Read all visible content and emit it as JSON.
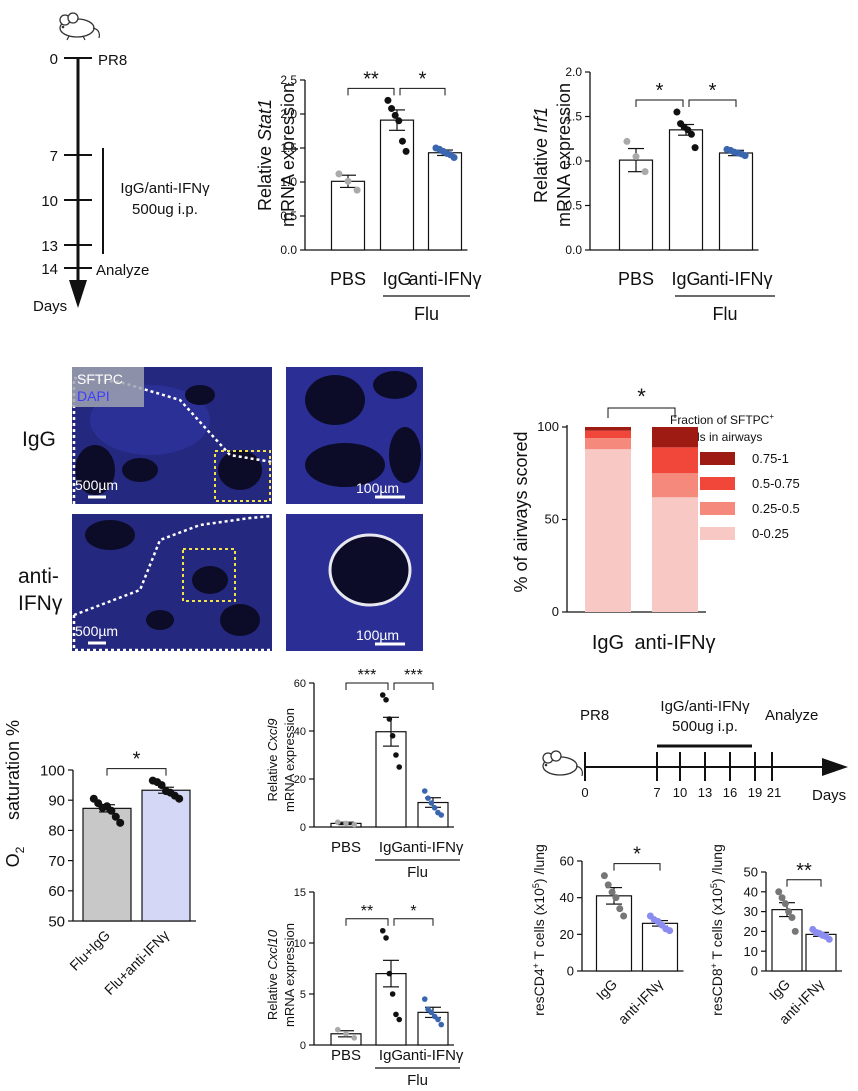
{
  "timeline_a": {
    "day_labels": [
      "0",
      "7",
      "10",
      "13",
      "14"
    ],
    "events": {
      "pr8": "PR8",
      "treatment_line1": "IgG/anti-IFNγ",
      "treatment_line2": "500ug i.p.",
      "analyze": "Analyze"
    },
    "axis_label": "Days"
  },
  "micrographs": {
    "row_labels": [
      "IgG",
      "anti-",
      "IFNγ"
    ],
    "stain_labels": [
      "SFTPC",
      "DAPI"
    ],
    "scalebars": [
      "500µm",
      "100µm",
      "500µm",
      "100µm"
    ],
    "colors": {
      "dapi": "#2b2f9e",
      "sftpc": "#e8e8f0",
      "roi_box": "#f2e34a"
    }
  },
  "timeline_b": {
    "pr8": "PR8",
    "treatment_line1": "IgG/anti-IFNγ",
    "treatment_line2": "500ug i.p.",
    "analyze": "Analyze",
    "ticks": [
      "0",
      "7",
      "10",
      "13",
      "16",
      "19",
      "21"
    ],
    "axis_label": "Days"
  },
  "chart_data": [
    {
      "id": "stat1",
      "type": "bar",
      "ylabel_line1": "Relative ",
      "ylabel_gene": "Stat1",
      "ylabel_line2": "mRNA expression",
      "categories": [
        "PBS",
        "IgG",
        "anti-IFNγ"
      ],
      "group_label": "Flu",
      "values": [
        1.01,
        1.91,
        1.43
      ],
      "sem": [
        0.09,
        0.15,
        0.04
      ],
      "points": [
        [
          1.12,
          1.01,
          0.88
        ],
        [
          2.2,
          2.08,
          1.98,
          1.9,
          1.6,
          1.45
        ],
        [
          1.5,
          1.48,
          1.45,
          1.42,
          1.4,
          1.36
        ]
      ],
      "ylim": [
        0,
        2.5
      ],
      "yticks": [
        "0.0",
        "0.5",
        "1.0",
        "1.5",
        "2.0",
        "2.5"
      ],
      "significance": [
        {
          "pair": [
            0,
            1
          ],
          "label": "**"
        },
        {
          "pair": [
            1,
            2
          ],
          "label": "*"
        }
      ],
      "point_colors": [
        "#aaaaaa",
        "#111111",
        "#3a66b0"
      ]
    },
    {
      "id": "irf1",
      "type": "bar",
      "ylabel_line1": "Relative ",
      "ylabel_gene": "Irf1",
      "ylabel_line2": "mRNA expression",
      "categories": [
        "PBS",
        "IgG",
        "anti-IFNγ"
      ],
      "group_label": "Flu",
      "values": [
        1.01,
        1.35,
        1.09
      ],
      "sem": [
        0.13,
        0.06,
        0.03
      ],
      "points": [
        [
          1.22,
          1.05,
          0.88
        ],
        [
          1.55,
          1.42,
          1.38,
          1.35,
          1.3,
          1.15
        ],
        [
          1.13,
          1.12,
          1.1,
          1.09,
          1.08,
          1.06
        ]
      ],
      "ylim": [
        0,
        2.0
      ],
      "yticks": [
        "0.0",
        "0.5",
        "1.0",
        "1.5",
        "2.0"
      ],
      "significance": [
        {
          "pair": [
            0,
            1
          ],
          "label": "*"
        },
        {
          "pair": [
            1,
            2
          ],
          "label": "*"
        }
      ],
      "point_colors": [
        "#aaaaaa",
        "#111111",
        "#3a66b0"
      ]
    },
    {
      "id": "airways",
      "type": "stacked_bar",
      "ylabel": "% of airways scored",
      "categories": [
        "IgG",
        "anti-IFNγ"
      ],
      "ylim": [
        0,
        100
      ],
      "yticks": [
        "0",
        "50",
        "100"
      ],
      "legend_title_line1": "Fraction of SFTPC",
      "legend_title_sup": "+",
      "legend_title_line2": "cells in airways",
      "series": [
        {
          "name": "0-0.25",
          "values": [
            88,
            62
          ],
          "color": "#f8c9c4"
        },
        {
          "name": "0.25-0.5",
          "values": [
            6,
            13
          ],
          "color": "#f58a7c"
        },
        {
          "name": "0.5-0.75",
          "values": [
            4,
            14
          ],
          "color": "#f0473a"
        },
        {
          "name": "0.75-1",
          "values": [
            2,
            11
          ],
          "color": "#9e1b13"
        }
      ],
      "significance": [
        {
          "pair": [
            0,
            1
          ],
          "label": "*"
        }
      ]
    },
    {
      "id": "o2",
      "type": "bar",
      "ylabel_line1": "O",
      "ylabel_sub": "2",
      "ylabel_line2": "saturation %",
      "categories": [
        "Flu+IgG",
        "Flu+anti-IFNγ"
      ],
      "values": [
        87.3,
        93.3
      ],
      "sem": [
        1.2,
        1.0
      ],
      "points": [
        [
          90.5,
          89.0,
          87.5,
          88.0,
          86.5,
          84.5,
          82.5
        ],
        [
          96.5,
          96.0,
          95.0,
          93.0,
          92.5,
          91.5,
          90.5
        ]
      ],
      "ylim": [
        50,
        100
      ],
      "yticks": [
        "50",
        "60",
        "70",
        "80",
        "90",
        "100"
      ],
      "bar_colors": [
        "#c8c8c8",
        "#d4d7f6"
      ],
      "significance": [
        {
          "pair": [
            0,
            1
          ],
          "label": "*"
        }
      ],
      "point_colors": [
        "#111111",
        "#111111"
      ]
    },
    {
      "id": "cxcl9",
      "type": "bar",
      "ylabel_line1": "Relative ",
      "ylabel_gene": "Cxcl9",
      "ylabel_line2": "mRNA expression",
      "categories": [
        "PBS",
        "IgG",
        "anti-IFNγ"
      ],
      "group_label": "Flu",
      "values": [
        1.5,
        39.7,
        10.2
      ],
      "sem": [
        0.5,
        6.0,
        2.0
      ],
      "points": [
        [
          2.0,
          1.5,
          1.0
        ],
        [
          55.0,
          53.0,
          45.0,
          38.0,
          30.0,
          25.0
        ],
        [
          15.0,
          12.0,
          10.0,
          8.0,
          6.0,
          5.0
        ]
      ],
      "ylim": [
        0,
        60
      ],
      "yticks": [
        "0",
        "20",
        "40",
        "60"
      ],
      "significance": [
        {
          "pair": [
            0,
            1
          ],
          "label": "***"
        },
        {
          "pair": [
            1,
            2
          ],
          "label": "***"
        }
      ],
      "point_colors": [
        "#aaaaaa",
        "#111111",
        "#3a66b0"
      ]
    },
    {
      "id": "cxcl10",
      "type": "bar",
      "ylabel_line1": "Relative ",
      "ylabel_gene": "Cxcl10",
      "ylabel_line2": "mRNA expression",
      "categories": [
        "PBS",
        "IgG",
        "anti-IFNγ"
      ],
      "group_label": "Flu",
      "values": [
        1.1,
        7.0,
        3.2
      ],
      "sem": [
        0.3,
        1.3,
        0.5
      ],
      "points": [
        [
          1.5,
          1.1,
          0.7
        ],
        [
          11.2,
          10.5,
          7.0,
          5.0,
          3.0,
          2.5
        ],
        [
          4.5,
          3.5,
          3.2,
          2.8,
          2.5,
          2.0
        ]
      ],
      "ylim": [
        0,
        15
      ],
      "yticks": [
        "0",
        "5",
        "10",
        "15"
      ],
      "significance": [
        {
          "pair": [
            0,
            1
          ],
          "label": "**"
        },
        {
          "pair": [
            1,
            2
          ],
          "label": "*"
        }
      ],
      "point_colors": [
        "#aaaaaa",
        "#111111",
        "#3a66b0"
      ]
    },
    {
      "id": "cd4",
      "type": "bar",
      "ylabel_line1": "resCD4",
      "ylabel_sup": "+",
      "ylabel_line2": " T cells (x10",
      "ylabel_sup2": "5",
      "ylabel_line3": ") /lung",
      "categories": [
        "IgG",
        "anti-IFNγ"
      ],
      "values": [
        41.0,
        26.0
      ],
      "sem": [
        4.5,
        1.5
      ],
      "points": [
        [
          52.0,
          47.0,
          43.0,
          40.0,
          34.0,
          30.0
        ],
        [
          30.0,
          28.0,
          27.0,
          25.0,
          23.0,
          22.0
        ]
      ],
      "ylim": [
        0,
        60
      ],
      "yticks": [
        "0",
        "20",
        "40",
        "60"
      ],
      "significance": [
        {
          "pair": [
            0,
            1
          ],
          "label": "*"
        }
      ],
      "point_colors": [
        "#777777",
        "#8b8cf0"
      ]
    },
    {
      "id": "cd8",
      "type": "bar",
      "ylabel_line1": "resCD8",
      "ylabel_sup": "+",
      "ylabel_line2": " T cells (x10",
      "ylabel_sup2": "5",
      "ylabel_line3": ") /lung",
      "categories": [
        "IgG",
        "anti-IFNγ"
      ],
      "values": [
        31.0,
        18.5
      ],
      "sem": [
        3.5,
        1.0
      ],
      "points": [
        [
          40.0,
          37.0,
          34.0,
          30.0,
          27.0,
          20.0
        ],
        [
          21.0,
          19.5,
          19.0,
          18.0,
          17.5,
          16.0
        ]
      ],
      "ylim": [
        0,
        50
      ],
      "yticks": [
        "0",
        "10",
        "20",
        "30",
        "40",
        "50"
      ],
      "significance": [
        {
          "pair": [
            0,
            1
          ],
          "label": "**"
        }
      ],
      "point_colors": [
        "#777777",
        "#8b8cf0"
      ]
    }
  ]
}
